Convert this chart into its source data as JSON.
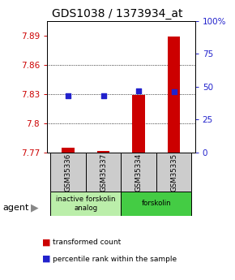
{
  "title": "GDS1038 / 1373934_at",
  "samples": [
    "GSM35336",
    "GSM35337",
    "GSM35334",
    "GSM35335"
  ],
  "red_values": [
    7.775,
    7.772,
    7.829,
    7.889
  ],
  "blue_values": [
    43,
    43,
    47,
    46
  ],
  "ylim_left": [
    7.77,
    7.905
  ],
  "ylim_right": [
    0,
    100
  ],
  "yticks_left": [
    7.77,
    7.8,
    7.83,
    7.86,
    7.89
  ],
  "yticks_right": [
    0,
    25,
    50,
    75,
    100
  ],
  "ytick_labels_right": [
    "0",
    "25",
    "50",
    "75",
    "100%"
  ],
  "grid_lines": [
    7.8,
    7.83,
    7.86
  ],
  "bar_color": "#cc0000",
  "blue_color": "#2222cc",
  "bar_width": 0.35,
  "groups": [
    {
      "label": "inactive forskolin\nanalog",
      "indices": [
        0,
        1
      ],
      "color": "#bbeeaa"
    },
    {
      "label": "forskolin",
      "indices": [
        2,
        3
      ],
      "color": "#44cc44"
    }
  ],
  "agent_label": "agent",
  "legend_red": "transformed count",
  "legend_blue": "percentile rank within the sample",
  "bar_gray": "#cccccc",
  "title_fontsize": 10,
  "tick_fontsize": 7.5,
  "label_fontsize": 7
}
